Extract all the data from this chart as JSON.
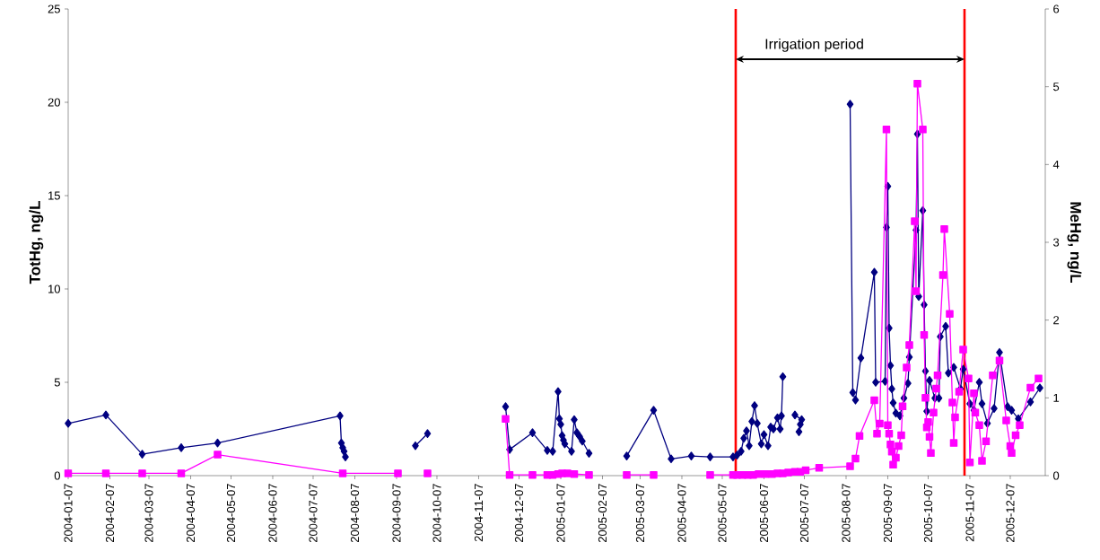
{
  "chart_data": {
    "type": "line",
    "ylabel": "TotHg, ng/L",
    "y2label": "MeHg, ng/L",
    "xlim": [
      "2004-01-07",
      "2006-01-02"
    ],
    "xticks": [
      "2004-01-07",
      "2004-02-07",
      "2004-03-07",
      "2004-04-07",
      "2004-05-07",
      "2004-06-07",
      "2004-07-07",
      "2004-08-07",
      "2004-09-07",
      "2004-10-07",
      "2004-11-07",
      "2004-12-07",
      "2005-01-07",
      "2005-02-07",
      "2005-03-07",
      "2005-04-07",
      "2005-05-07",
      "2005-06-07",
      "2005-07-07",
      "2005-08-07",
      "2005-09-07",
      "2005-10-07",
      "2005-11-07",
      "2005-12-07"
    ],
    "ylim": [
      0,
      25
    ],
    "yticks": [
      0,
      5,
      10,
      15,
      20,
      25
    ],
    "y2lim": [
      0,
      6
    ],
    "y2ticks": [
      0,
      1,
      2,
      3,
      4,
      5,
      6
    ],
    "ref_lines": [
      {
        "axis": "x",
        "value": "2005-05-17",
        "label": null,
        "color": "#ff0000"
      },
      {
        "axis": "x",
        "value": "2005-11-03",
        "label": null,
        "color": "#ff0000"
      }
    ],
    "annotations": [
      "Irrigation period"
    ],
    "series": [
      {
        "color": "#000080",
        "marker": "diamond",
        "axis": "y",
        "x": [
          "2004-01-07",
          "2004-02-04",
          "2004-03-02",
          "2004-03-31",
          "2004-04-27",
          "2004-07-27",
          "2004-07-28",
          "2004-07-29",
          "2004-07-30",
          "2004-07-31",
          "2004-08-25",
          "2004-09-21",
          "2004-09-30",
          "2004-10-30",
          "2004-11-27",
          "2004-11-30",
          "2004-12-17",
          "2004-12-28",
          "2005-01-01",
          "2005-01-05",
          "2005-01-06",
          "2005-01-07",
          "2005-01-08",
          "2005-01-09",
          "2005-01-10",
          "2005-01-15",
          "2005-01-17",
          "2005-01-19",
          "2005-01-21",
          "2005-01-23",
          "2005-01-28",
          "2005-02-10",
          "2005-02-25",
          "2005-03-17",
          "2005-03-30",
          "2005-04-14",
          "2005-04-28",
          "2005-05-15",
          "2005-05-18",
          "2005-05-21",
          "2005-05-23",
          "2005-05-25",
          "2005-05-27",
          "2005-05-29",
          "2005-05-31",
          "2005-06-02",
          "2005-06-05",
          "2005-06-07",
          "2005-06-10",
          "2005-06-12",
          "2005-06-14",
          "2005-06-17",
          "2005-06-19",
          "2005-06-20",
          "2005-06-21",
          "2005-06-25",
          "2005-06-30",
          "2005-07-05",
          "2005-07-04",
          "2005-07-03",
          "2005-07-20",
          "2005-08-10",
          "2005-08-12",
          "2005-08-14",
          "2005-08-18",
          "2005-08-28",
          "2005-08-29",
          "2005-09-05",
          "2005-09-06",
          "2005-09-07",
          "2005-09-08",
          "2005-09-09",
          "2005-09-10",
          "2005-09-11",
          "2005-09-13",
          "2005-09-16",
          "2005-09-19",
          "2005-09-22",
          "2005-09-23",
          "2005-09-28",
          "2005-09-29",
          "2005-09-30",
          "2005-10-03",
          "2005-10-04",
          "2005-10-05",
          "2005-10-06",
          "2005-10-08",
          "2005-10-12",
          "2005-10-15",
          "2005-10-16",
          "2005-10-20",
          "2005-10-22",
          "2005-10-26",
          "2005-10-31",
          "2005-11-02",
          "2005-11-07",
          "2005-11-10",
          "2005-11-14",
          "2005-11-16",
          "2005-11-20",
          "2005-11-25",
          "2005-11-29",
          "2005-12-05",
          "2005-12-08",
          "2005-12-13",
          "2005-12-22",
          "2005-12-29"
        ],
        "values": [
          2.8,
          3.25,
          1.15,
          1.5,
          1.75,
          3.2,
          1.75,
          1.5,
          1.3,
          1.0,
          null,
          1.6,
          2.25,
          null,
          3.7,
          1.4,
          2.3,
          1.35,
          1.3,
          4.5,
          3.05,
          2.75,
          2.15,
          1.9,
          1.7,
          1.3,
          3.0,
          2.3,
          2.1,
          1.85,
          1.2,
          null,
          1.05,
          3.5,
          0.9,
          1.05,
          1.0,
          1.0,
          1.1,
          1.3,
          2.0,
          2.4,
          1.6,
          2.9,
          3.75,
          2.8,
          1.7,
          2.2,
          1.6,
          2.6,
          2.5,
          3.1,
          2.5,
          3.2,
          5.3,
          null,
          3.25,
          3.0,
          2.75,
          2.35,
          null,
          19.9,
          4.45,
          4.05,
          6.3,
          10.9,
          5.0,
          5.05,
          13.3,
          15.5,
          7.9,
          5.9,
          4.65,
          3.9,
          3.35,
          3.2,
          4.15,
          4.95,
          6.35,
          13.15,
          18.3,
          9.6,
          14.2,
          9.15,
          5.6,
          3.45,
          5.1,
          4.15,
          4.15,
          7.45,
          8.0,
          5.5,
          5.8,
          4.65,
          5.7,
          3.85,
          3.5,
          5.0,
          3.85,
          2.8,
          3.6,
          6.6,
          3.7,
          3.5,
          3.05,
          3.95,
          4.7
        ]
      },
      {
        "color": "#ff00ff",
        "marker": "square",
        "axis": "y2",
        "x": [
          "2004-01-07",
          "2004-02-04",
          "2004-03-02",
          "2004-03-31",
          "2004-04-27",
          "2004-07-29",
          "2004-09-08",
          "2004-09-20",
          "2004-09-30",
          "2004-10-30",
          "2004-11-27",
          "2004-11-30",
          "2004-12-17",
          "2004-12-28",
          "2005-01-01",
          "2005-01-05",
          "2005-01-08",
          "2005-01-12",
          "2005-01-17",
          "2005-01-28",
          "2005-02-10",
          "2005-02-25",
          "2005-03-17",
          "2005-04-05",
          "2005-04-28",
          "2005-05-15",
          "2005-05-18",
          "2005-05-22",
          "2005-05-26",
          "2005-05-30",
          "2005-06-03",
          "2005-06-08",
          "2005-06-13",
          "2005-06-17",
          "2005-06-21",
          "2005-06-25",
          "2005-06-30",
          "2005-07-04",
          "2005-07-08",
          "2005-07-18",
          "2005-08-10",
          "2005-08-14",
          "2005-08-17",
          "2005-08-28",
          "2005-08-30",
          "2005-09-01",
          "2005-09-06",
          "2005-09-07",
          "2005-09-08",
          "2005-09-09",
          "2005-09-10",
          "2005-09-11",
          "2005-09-13",
          "2005-09-15",
          "2005-09-17",
          "2005-09-18",
          "2005-09-21",
          "2005-09-23",
          "2005-09-27",
          "2005-09-28",
          "2005-09-29",
          "2005-10-03",
          "2005-10-04",
          "2005-10-05",
          "2005-10-06",
          "2005-10-07",
          "2005-10-08",
          "2005-10-09",
          "2005-10-11",
          "2005-10-13",
          "2005-10-14",
          "2005-10-18",
          "2005-10-19",
          "2005-10-23",
          "2005-10-25",
          "2005-10-26",
          "2005-10-27",
          "2005-10-30",
          "2005-11-02",
          "2005-11-06",
          "2005-11-07",
          "2005-11-10",
          "2005-11-11",
          "2005-11-14",
          "2005-11-16",
          "2005-11-19",
          "2005-11-24",
          "2005-11-29",
          "2005-12-04",
          "2005-12-07",
          "2005-12-08",
          "2005-12-11",
          "2005-12-14",
          "2005-12-22",
          "2005-12-28"
        ],
        "values": [
          0.03,
          0.03,
          0.03,
          0.03,
          0.27,
          0.03,
          0.03,
          null,
          0.03,
          null,
          0.73,
          0.01,
          0.01,
          0.01,
          0.01,
          0.02,
          0.03,
          0.03,
          0.02,
          0.01,
          null,
          0.01,
          0.01,
          null,
          0.01,
          0.01,
          0.01,
          0.01,
          0.01,
          0.01,
          0.02,
          0.02,
          0.02,
          0.03,
          0.03,
          0.04,
          0.05,
          0.05,
          0.07,
          0.1,
          0.12,
          0.22,
          0.51,
          0.97,
          0.54,
          0.67,
          4.45,
          0.65,
          0.54,
          0.4,
          0.31,
          0.14,
          0.23,
          0.38,
          0.52,
          0.89,
          1.39,
          1.68,
          3.27,
          2.37,
          5.04,
          4.45,
          1.81,
          1.0,
          0.62,
          0.69,
          0.5,
          0.29,
          0.81,
          1.12,
          1.29,
          2.58,
          3.17,
          2.08,
          0.94,
          0.42,
          0.75,
          1.08,
          1.62,
          1.25,
          0.17,
          1.06,
          0.81,
          0.65,
          0.19,
          0.44,
          1.29,
          1.48,
          0.71,
          0.38,
          0.29,
          0.52,
          0.65,
          1.13,
          1.25
        ]
      }
    ]
  }
}
